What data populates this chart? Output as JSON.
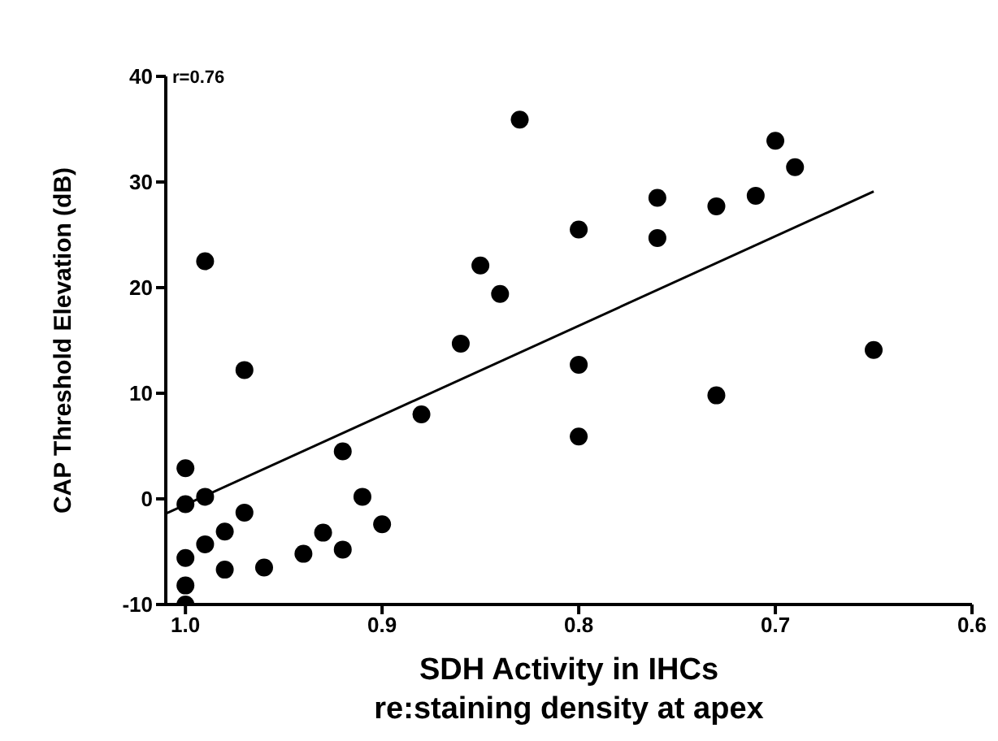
{
  "chart_data": {
    "type": "scatter",
    "xlabel": "SDH Activity in IHCs\nre:staining density at apex",
    "ylabel": "CAP Threshold Elevation (dB)",
    "annotations": [
      "r=0.76"
    ],
    "xlim": [
      1.01,
      0.6
    ],
    "xticks": [
      {
        "value": 1.0,
        "label": "1.0"
      },
      0.9,
      0.8,
      0.7,
      0.6
    ],
    "ylim": [
      -10,
      40
    ],
    "yticks": [
      -10,
      0,
      10,
      20,
      30,
      40
    ],
    "grid": false,
    "legend": false,
    "series": [
      {
        "marker": "circle",
        "color": "#000000",
        "x": [
          0.83,
          0.99,
          0.85,
          0.84,
          0.97,
          0.86,
          0.88,
          1.0,
          0.92,
          1.0,
          0.99,
          0.91,
          0.97,
          0.9,
          0.98,
          0.99,
          0.93,
          0.92,
          0.94,
          1.0,
          0.98,
          0.96,
          1.0,
          1.0,
          0.7,
          0.69,
          0.76,
          0.71,
          0.73,
          0.8,
          0.76,
          0.65,
          0.8,
          0.73,
          0.8
        ],
        "values": [
          35.9,
          22.5,
          22.1,
          19.4,
          12.2,
          14.7,
          8.0,
          2.9,
          4.5,
          -0.5,
          0.2,
          0.2,
          -1.3,
          -2.4,
          -3.1,
          -4.3,
          -3.2,
          -4.8,
          -5.2,
          -5.6,
          -6.7,
          -6.5,
          -8.2,
          -10.0,
          33.9,
          31.4,
          28.5,
          28.7,
          27.7,
          25.5,
          24.7,
          14.1,
          12.7,
          9.8,
          5.9
        ]
      },
      {
        "type": "line",
        "marker": "none",
        "color": "#000000",
        "x": [
          1.01,
          0.65
        ],
        "values": [
          -1.4,
          29.1
        ]
      }
    ]
  }
}
